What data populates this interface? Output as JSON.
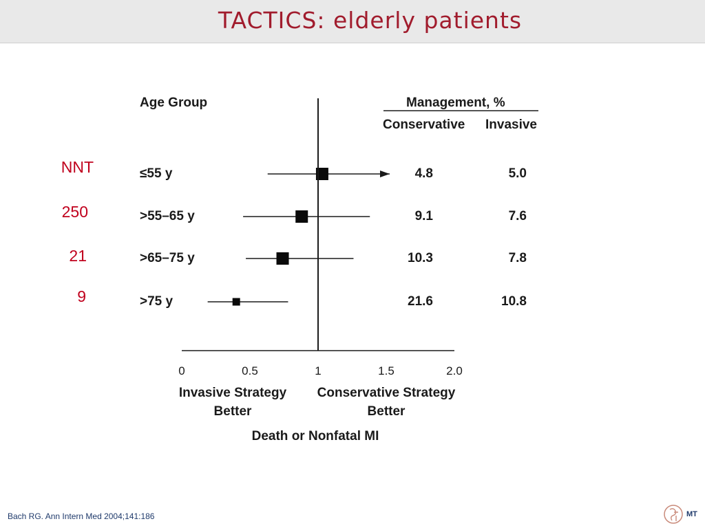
{
  "slide": {
    "title": "TACTICS:  elderly patients",
    "citation": "Bach RG. Ann Intern Med 2004;141:186",
    "logo_text": "MT"
  },
  "nnt": {
    "header": "NNT",
    "values": [
      "250",
      "21",
      "9"
    ]
  },
  "chart_data": {
    "type": "forest",
    "column_header_group": "Age Group",
    "management_header": "Management, %",
    "management_columns": [
      "Conservative",
      "Invasive"
    ],
    "x_tick_labels": [
      "0",
      "0.5",
      "1",
      "1.5",
      "2.0"
    ],
    "x_ticks": [
      0,
      0.5,
      1,
      1.5,
      2.0
    ],
    "xlim": [
      0,
      2.0
    ],
    "reference_line": 1,
    "left_label_line1": "Invasive Strategy",
    "left_label_line2": "Better",
    "right_label_line1": "Conservative Strategy",
    "right_label_line2": "Better",
    "xlabel": "Death or Nonfatal MI",
    "rows": [
      {
        "group": "≤55 y",
        "estimate": 1.03,
        "ci_low": 0.63,
        "ci_high": 2.0,
        "ci_high_truncated": true,
        "conservative": "4.8",
        "invasive": "5.0",
        "weight": "large"
      },
      {
        "group": ">55–65 y",
        "estimate": 0.88,
        "ci_low": 0.45,
        "ci_high": 1.38,
        "ci_high_truncated": false,
        "conservative": "9.1",
        "invasive": "7.6",
        "weight": "large"
      },
      {
        "group": ">65–75 y",
        "estimate": 0.74,
        "ci_low": 0.47,
        "ci_high": 1.26,
        "ci_high_truncated": false,
        "conservative": "10.3",
        "invasive": "7.8",
        "weight": "large"
      },
      {
        "group": ">75 y",
        "estimate": 0.4,
        "ci_low": 0.19,
        "ci_high": 0.78,
        "ci_high_truncated": false,
        "conservative": "21.6",
        "invasive": "10.8",
        "weight": "small"
      }
    ]
  }
}
